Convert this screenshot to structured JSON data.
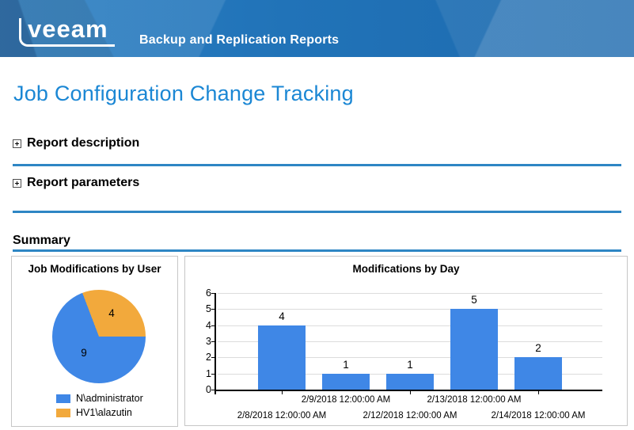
{
  "header": {
    "logo_text": "veeam",
    "product_title": "Backup and Replication Reports"
  },
  "page_title": "Job Configuration Change Tracking",
  "sections": {
    "description_label": "Report description",
    "parameters_label": "Report parameters"
  },
  "summary_label": "Summary",
  "chart_data": [
    {
      "type": "pie",
      "title": "Job Modifications by User",
      "series": [
        {
          "label": "N\\administrator",
          "value": 9,
          "color": "#3f87e6"
        },
        {
          "label": "HV1\\alazutin",
          "value": 4,
          "color": "#f2a93c"
        }
      ],
      "data_labels": true,
      "legend_position": "bottom"
    },
    {
      "type": "bar",
      "title": "Modifications by Day",
      "categories": [
        "2/8/2018 12:00:00 AM",
        "2/9/2018 12:00:00 AM",
        "2/12/2018 12:00:00 AM",
        "2/13/2018 12:00:00 AM",
        "2/14/2018 12:00:00 AM"
      ],
      "values": [
        4,
        1,
        1,
        5,
        2
      ],
      "bar_color": "#3f87e6",
      "ylim": [
        0,
        6
      ],
      "yticks": [
        0,
        1,
        2,
        3,
        4,
        5,
        6
      ],
      "grid": true,
      "data_labels": true,
      "legend_position": "none"
    }
  ],
  "colors": {
    "accent_divider": "#2e86c4",
    "title_blue": "#1b87d4",
    "header_blue": "#2173b8",
    "bar_blue": "#3f87e6",
    "pie_orange": "#f2a93c"
  }
}
